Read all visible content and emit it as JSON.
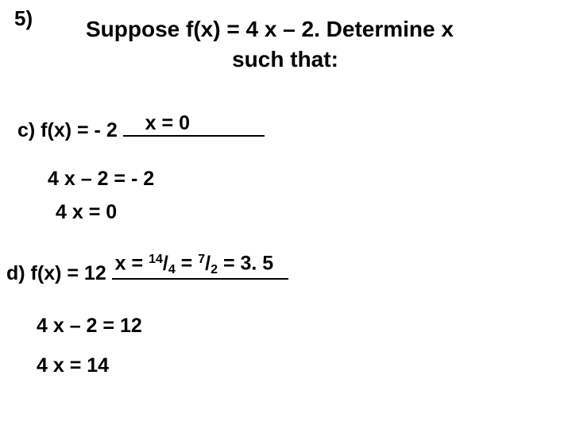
{
  "question_number": "5)",
  "title_line1": "Suppose f(x) = 4 x – 2.  Determine  x",
  "title_line2": "such that:",
  "part_c": {
    "label": "c) f(x) =  - 2 ",
    "answer": "x = 0",
    "work1": "4 x – 2 = - 2",
    "work2": "4 x = 0"
  },
  "part_d": {
    "label": "d) f(x) = 12  ",
    "answer_prefix": "x  = ",
    "frac1_num": "14",
    "slash1": "/",
    "frac1_den": "4",
    "mid": " = ",
    "frac2_num": "7",
    "slash2": "/",
    "frac2_den": "2",
    "suffix": " = 3. 5",
    "work1": "4 x – 2 = 12",
    "work2": "4 x  = 14"
  },
  "style": {
    "background_color": "#ffffff",
    "text_color": "#000000",
    "title_fontsize": 28,
    "body_fontsize": 25,
    "frac_small_fontsize": 16,
    "font_family": "Arial",
    "underline_color": "#000000"
  }
}
